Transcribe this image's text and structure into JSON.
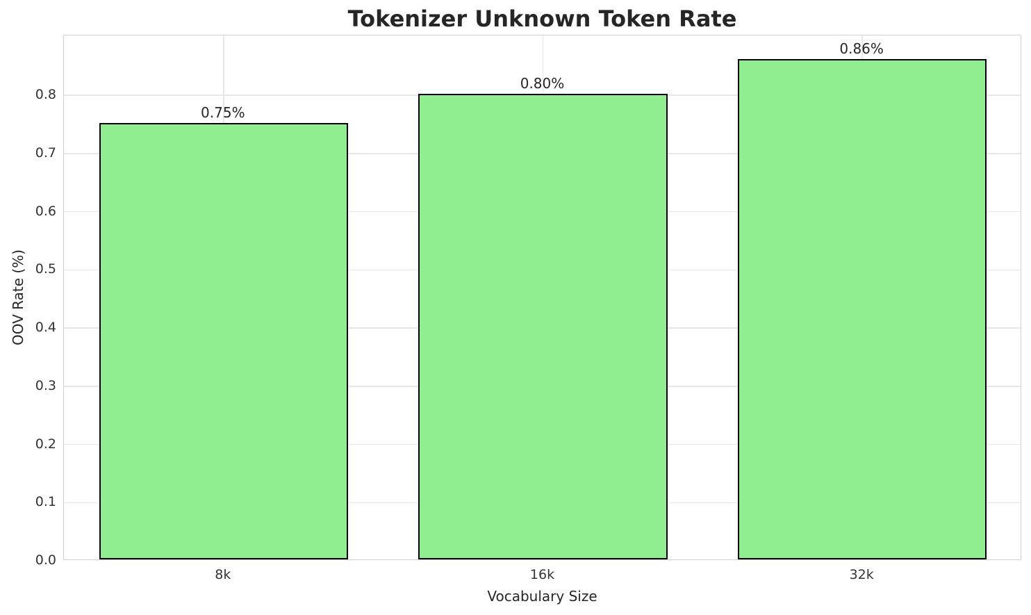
{
  "chart_data": {
    "type": "bar",
    "title": "Tokenizer Unknown Token Rate",
    "xlabel": "Vocabulary Size",
    "ylabel": "OOV Rate (%)",
    "categories": [
      "8k",
      "16k",
      "32k"
    ],
    "values": [
      0.75,
      0.8,
      0.86
    ],
    "bar_labels": [
      "0.75%",
      "0.80%",
      "0.86%"
    ],
    "yticks": [
      0.0,
      0.1,
      0.2,
      0.3,
      0.4,
      0.5,
      0.6,
      0.7,
      0.8
    ],
    "ytick_labels": [
      "0.0",
      "0.1",
      "0.2",
      "0.3",
      "0.4",
      "0.5",
      "0.6",
      "0.7",
      "0.8"
    ],
    "ylim": [
      0,
      0.903
    ],
    "grid": true,
    "legend": "none",
    "bar_color": "#90EE90",
    "bar_edge_color": "#000000",
    "grid_color": "#e7e7e7",
    "spine_color": "#d2d2d2",
    "text_color": "#262626"
  }
}
